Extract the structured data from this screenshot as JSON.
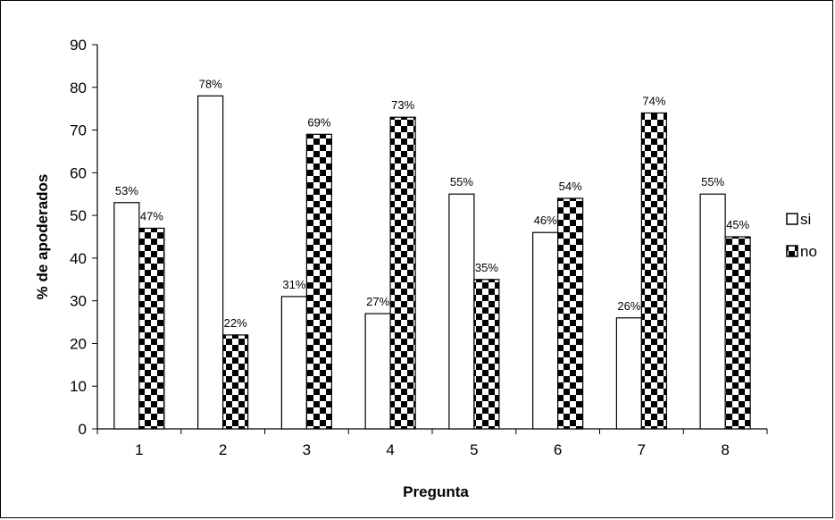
{
  "chart_data": {
    "type": "bar",
    "xlabel": "Pregunta",
    "ylabel": "% de apoderados",
    "ylim": [
      0,
      90
    ],
    "yticks": [
      0,
      10,
      20,
      30,
      40,
      50,
      60,
      70,
      80,
      90
    ],
    "categories": [
      "1",
      "2",
      "3",
      "4",
      "5",
      "6",
      "7",
      "8"
    ],
    "series": [
      {
        "name": "si",
        "values": [
          53,
          78,
          31,
          27,
          55,
          46,
          26,
          55
        ],
        "labels": [
          "53%",
          "78%",
          "31%",
          "27%",
          "55%",
          "46%",
          "26%",
          "55%"
        ],
        "fill": "#ffffff"
      },
      {
        "name": "no",
        "values": [
          47,
          22,
          69,
          73,
          35,
          54,
          74,
          45
        ],
        "labels": [
          "47%",
          "22%",
          "69%",
          "73%",
          "35%",
          "54%",
          "74%",
          "45%"
        ],
        "fill": "checker-black-white"
      }
    ],
    "grid": false,
    "legend_position": "right"
  }
}
